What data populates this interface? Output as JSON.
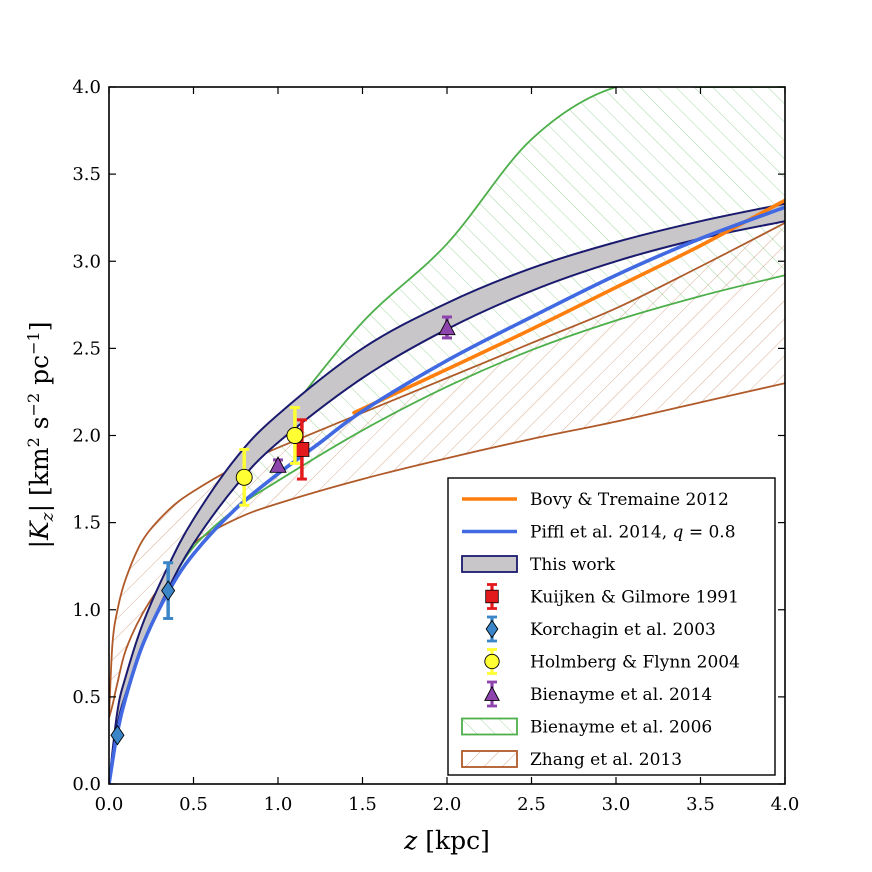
{
  "chart_data": {
    "type": "line",
    "xlabel": "z [kpc]",
    "ylabel": "|K_z| [km² s⁻² pc⁻¹]",
    "xlim": [
      0.0,
      4.0
    ],
    "ylim": [
      0.0,
      4.0
    ],
    "x_ticks": [
      "0.0",
      "0.5",
      "1.0",
      "1.5",
      "2.0",
      "2.5",
      "3.0",
      "3.5",
      "4.0"
    ],
    "y_ticks": [
      "0.0",
      "0.5",
      "1.0",
      "1.5",
      "2.0",
      "2.5",
      "3.0",
      "3.5",
      "4.0"
    ],
    "legend_position": "bottom-right",
    "colors": {
      "bovy": "#ff7f0e",
      "piffl": "#4169e1",
      "this_work_fill": "#c8c6c8",
      "this_work_edge": "#1a1a6e",
      "kuijken": "#e31a1c",
      "korchagin": "#3a86c8",
      "holmberg": "#ffff33",
      "bienayme2014": "#8e44ad",
      "bienayme2006": "#4daf4a",
      "zhang": "#b05a2a"
    },
    "bands": [
      {
        "name": "This work",
        "x": [
          0.0,
          0.05,
          0.1,
          0.2,
          0.35,
          0.5,
          0.75,
          1.0,
          1.5,
          2.0,
          2.5,
          3.0,
          3.5,
          4.0
        ],
        "upper": [
          0.0,
          0.42,
          0.62,
          0.92,
          1.25,
          1.52,
          1.87,
          2.12,
          2.5,
          2.76,
          2.96,
          3.11,
          3.23,
          3.33
        ],
        "lower": [
          0.0,
          0.34,
          0.52,
          0.8,
          1.12,
          1.38,
          1.71,
          1.96,
          2.33,
          2.61,
          2.83,
          3.0,
          3.13,
          3.23
        ]
      },
      {
        "name": "Bienayme et al. 2006",
        "x": [
          0.0,
          0.05,
          0.1,
          0.2,
          0.35,
          0.5,
          0.75,
          1.0,
          1.5,
          2.0,
          2.5,
          3.0,
          3.5,
          4.0
        ],
        "upper": [
          0.0,
          0.35,
          0.58,
          0.88,
          1.22,
          1.48,
          1.82,
          2.06,
          2.65,
          3.1,
          3.7,
          4.0,
          4.0,
          4.0
        ],
        "lower": [
          0.0,
          0.3,
          0.5,
          0.8,
          1.12,
          1.36,
          1.58,
          1.74,
          2.03,
          2.28,
          2.49,
          2.66,
          2.8,
          2.92
        ]
      },
      {
        "name": "Zhang et al. 2013",
        "x": [
          0.0,
          0.02,
          0.05,
          0.1,
          0.2,
          0.35,
          0.5,
          0.75,
          1.0,
          1.5,
          2.0,
          2.5,
          3.0,
          3.5,
          4.0
        ],
        "upper": [
          0.38,
          0.8,
          1.0,
          1.18,
          1.4,
          1.57,
          1.68,
          1.82,
          1.93,
          2.13,
          2.33,
          2.53,
          2.73,
          2.97,
          3.22
        ],
        "lower": [
          0.38,
          0.45,
          0.58,
          0.77,
          0.98,
          1.2,
          1.38,
          1.52,
          1.61,
          1.75,
          1.87,
          1.98,
          2.08,
          2.19,
          2.3
        ]
      }
    ],
    "series": [
      {
        "name": "Bovy & Tremaine 2012",
        "x": [
          1.45,
          2.0,
          2.5,
          3.0,
          3.5,
          4.0
        ],
        "y": [
          2.13,
          2.38,
          2.61,
          2.85,
          3.09,
          3.35
        ]
      },
      {
        "name": "Piffl et al. 2014, q = 0.8",
        "x": [
          0.0,
          0.05,
          0.1,
          0.2,
          0.35,
          0.5,
          0.75,
          1.0,
          1.25,
          1.5,
          2.0,
          2.5,
          3.0,
          3.5,
          4.0
        ],
        "y": [
          0.0,
          0.3,
          0.5,
          0.8,
          1.1,
          1.32,
          1.58,
          1.78,
          1.96,
          2.14,
          2.43,
          2.68,
          2.92,
          3.13,
          3.31
        ]
      }
    ],
    "points": [
      {
        "name": "Kuijken & Gilmore 1991",
        "marker": "square",
        "x": 1.1,
        "y": 1.92,
        "err": 0.17
      },
      {
        "name": "Korchagin et al. 2003",
        "marker": "diamond",
        "x": 0.05,
        "y": 0.28,
        "err": 0.0
      },
      {
        "name": "Korchagin et al. 2003",
        "marker": "diamond",
        "x": 0.35,
        "y": 1.11,
        "err": 0.16
      },
      {
        "name": "Holmberg & Flynn 2004",
        "marker": "circle",
        "x": 0.8,
        "y": 1.76,
        "err": 0.16
      },
      {
        "name": "Holmberg & Flynn 2004",
        "marker": "circle",
        "x": 1.1,
        "y": 2.0,
        "err": 0.16
      },
      {
        "name": "Bienayme et al. 2014",
        "marker": "triangle",
        "x": 1.0,
        "y": 1.83,
        "err": 0.03
      },
      {
        "name": "Bienayme et al. 2014",
        "marker": "triangle",
        "x": 2.0,
        "y": 2.62,
        "err": 0.06
      }
    ],
    "legend": [
      "Bovy & Tremaine 2012",
      "Piffl et al. 2014, q = 0.8",
      "This work",
      "Kuijken & Gilmore 1991",
      "Korchagin et al. 2003",
      "Holmberg & Flynn 2004",
      "Bienayme et al. 2014",
      "Bienayme et al. 2006",
      "Zhang et al. 2013"
    ]
  }
}
